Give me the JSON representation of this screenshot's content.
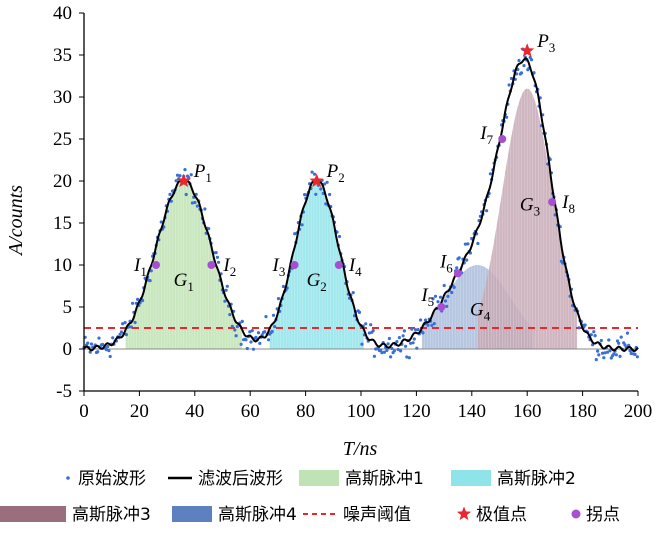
{
  "chart_data": {
    "type": "line",
    "xlabel": "T/ns",
    "ylabel": "A/counts",
    "xlim": [
      0,
      200
    ],
    "ylim": [
      -5,
      40
    ],
    "xticks": [
      0,
      20,
      40,
      60,
      80,
      100,
      120,
      140,
      160,
      180,
      200
    ],
    "yticks": [
      -5,
      0,
      5,
      10,
      15,
      20,
      25,
      30,
      35,
      40
    ],
    "noise_threshold": 2.5,
    "filtered_peaks": [
      {
        "center": 36,
        "amplitude": 20,
        "sigma": 10
      },
      {
        "center": 84,
        "amplitude": 20,
        "sigma": 8
      },
      {
        "center": 142,
        "amplitude": 10,
        "sigma": 12
      },
      {
        "center": 160,
        "amplitude": 31,
        "sigma": 9
      }
    ],
    "gaussian_pulses": [
      {
        "name": "G1",
        "label": "G",
        "sub": "1",
        "center": 36,
        "amplitude": 20,
        "sigma": 10,
        "range": [
          15,
          57
        ],
        "color": "#bfe3b4",
        "label_pos": [
          36,
          7.5
        ]
      },
      {
        "name": "G2",
        "label": "G",
        "sub": "2",
        "center": 84,
        "amplitude": 20,
        "sigma": 8,
        "range": [
          67,
          101
        ],
        "color": "#8fe4ea",
        "label_pos": [
          84,
          7.5
        ]
      },
      {
        "name": "G4",
        "label": "G",
        "sub": "4",
        "center": 142,
        "amplitude": 10,
        "sigma": 12,
        "range": [
          122,
          162
        ],
        "color": "#a9bcdc",
        "label_pos": [
          143,
          4
        ]
      },
      {
        "name": "G3",
        "label": "G",
        "sub": "3",
        "center": 160,
        "amplitude": 31,
        "sigma": 9,
        "range": [
          142,
          178
        ],
        "color": "#c7a8b4",
        "label_pos": [
          161,
          16.5
        ]
      }
    ],
    "extreme_points": [
      {
        "label": "P",
        "sub": "1",
        "x": 36,
        "y": 20
      },
      {
        "label": "P",
        "sub": "2",
        "x": 84,
        "y": 20
      },
      {
        "label": "P",
        "sub": "3",
        "x": 160,
        "y": 35.5
      }
    ],
    "inflection_points": [
      {
        "label": "I",
        "sub": "1",
        "x": 26,
        "y": 10
      },
      {
        "label": "I",
        "sub": "2",
        "x": 46,
        "y": 10
      },
      {
        "label": "I",
        "sub": "3",
        "x": 76,
        "y": 10
      },
      {
        "label": "I",
        "sub": "4",
        "x": 92,
        "y": 10
      },
      {
        "label": "I",
        "sub": "5",
        "x": 129,
        "y": 5
      },
      {
        "label": "I",
        "sub": "6",
        "x": 135,
        "y": 9
      },
      {
        "label": "I",
        "sub": "7",
        "x": 151,
        "y": 25
      },
      {
        "label": "I",
        "sub": "8",
        "x": 169,
        "y": 17.5
      }
    ],
    "legend": [
      {
        "key": "raw",
        "label": "原始波形",
        "color": "#3a6fd8"
      },
      {
        "key": "filtered",
        "label": "滤波后波形",
        "color": "#000000"
      },
      {
        "key": "g1",
        "label": "高斯脉冲1",
        "color": "#bfe3b4"
      },
      {
        "key": "g2",
        "label": "高斯脉冲2",
        "color": "#8fe4ea"
      },
      {
        "key": "g3",
        "label": "高斯脉冲3",
        "color": "#9a6e7c"
      },
      {
        "key": "g4",
        "label": "高斯脉冲4",
        "color": "#5d80c0"
      },
      {
        "key": "noise",
        "label": "噪声阈值",
        "color": "#e8272e"
      },
      {
        "key": "extreme",
        "label": "极值点",
        "color": "#e8272e"
      },
      {
        "key": "inflection",
        "label": "拐点",
        "color": "#a64fd0"
      }
    ]
  }
}
